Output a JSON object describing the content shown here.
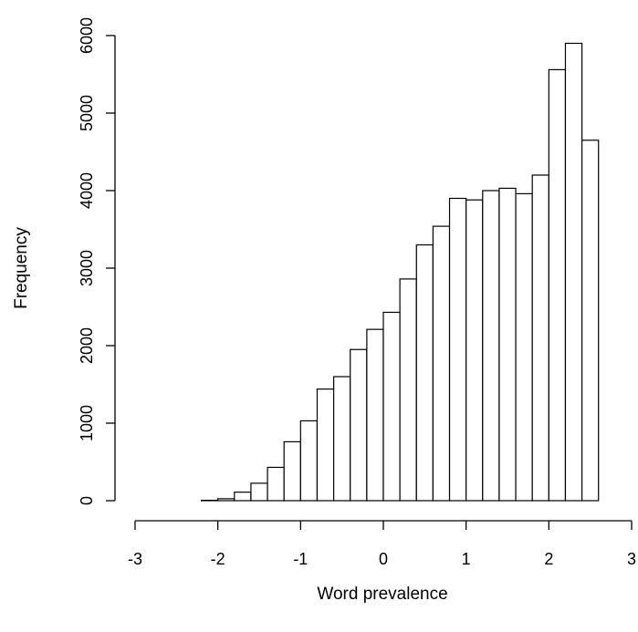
{
  "chart_data": {
    "type": "bar",
    "histogram": true,
    "title": "",
    "xlabel": "Word prevalence",
    "ylabel": "Frequency",
    "xlim": [
      -3,
      3
    ],
    "ylim": [
      0,
      6000
    ],
    "x_ticks": [
      -3,
      -2,
      -1,
      0,
      1,
      2,
      3
    ],
    "x_tick_labels": [
      "-3",
      "-2",
      "-1",
      "0",
      "1",
      "2",
      "3"
    ],
    "y_ticks": [
      0,
      1000,
      2000,
      3000,
      4000,
      5000,
      6000
    ],
    "y_tick_labels": [
      "0",
      "1000",
      "2000",
      "3000",
      "4000",
      "5000",
      "6000"
    ],
    "bin_width": 0.2,
    "bins": [
      {
        "start": -2.2,
        "end": -2.0,
        "value": 5
      },
      {
        "start": -2.0,
        "end": -1.8,
        "value": 25
      },
      {
        "start": -1.8,
        "end": -1.6,
        "value": 110
      },
      {
        "start": -1.6,
        "end": -1.4,
        "value": 225
      },
      {
        "start": -1.4,
        "end": -1.2,
        "value": 430
      },
      {
        "start": -1.2,
        "end": -1.0,
        "value": 760
      },
      {
        "start": -1.0,
        "end": -0.8,
        "value": 1030
      },
      {
        "start": -0.8,
        "end": -0.6,
        "value": 1440
      },
      {
        "start": -0.6,
        "end": -0.4,
        "value": 1600
      },
      {
        "start": -0.4,
        "end": -0.2,
        "value": 1950
      },
      {
        "start": -0.2,
        "end": 0.0,
        "value": 2210
      },
      {
        "start": 0.0,
        "end": 0.2,
        "value": 2430
      },
      {
        "start": 0.2,
        "end": 0.4,
        "value": 2860
      },
      {
        "start": 0.4,
        "end": 0.6,
        "value": 3300
      },
      {
        "start": 0.6,
        "end": 0.8,
        "value": 3540
      },
      {
        "start": 0.8,
        "end": 1.0,
        "value": 3900
      },
      {
        "start": 1.0,
        "end": 1.2,
        "value": 3880
      },
      {
        "start": 1.2,
        "end": 1.4,
        "value": 4000
      },
      {
        "start": 1.4,
        "end": 1.6,
        "value": 4030
      },
      {
        "start": 1.6,
        "end": 1.8,
        "value": 3960
      },
      {
        "start": 1.8,
        "end": 2.0,
        "value": 4200
      },
      {
        "start": 2.0,
        "end": 2.2,
        "value": 5560
      },
      {
        "start": 2.2,
        "end": 2.4,
        "value": 5900
      },
      {
        "start": 2.4,
        "end": 2.6,
        "value": 4650
      }
    ],
    "grid": false,
    "legend": "none",
    "bar_fill": "#ffffff",
    "bar_stroke": "#000000"
  }
}
